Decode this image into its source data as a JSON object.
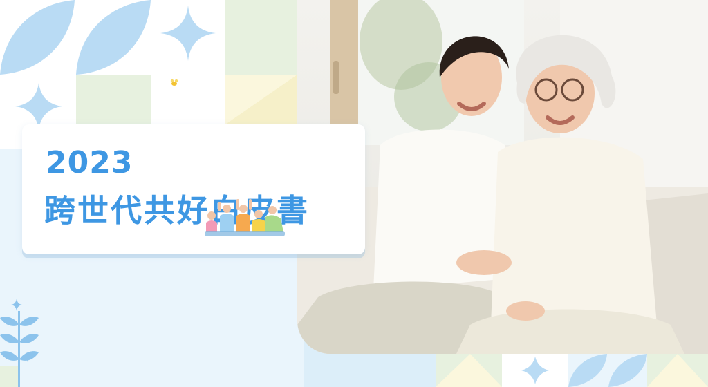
{
  "banner": {
    "year": "2023",
    "title": "跨世代共好白皮書"
  },
  "colors": {
    "title_blue": "#3e97e3",
    "leaf_blue": "#b9dbf4",
    "pale_green": "#e7f1df",
    "pale_yellow": "#fbf7dd",
    "background": "#dceef9"
  },
  "icons": [
    "sparkle-icon",
    "leaf-icon",
    "bee-icon",
    "people-group-icon",
    "wheat-sprig-icon"
  ]
}
